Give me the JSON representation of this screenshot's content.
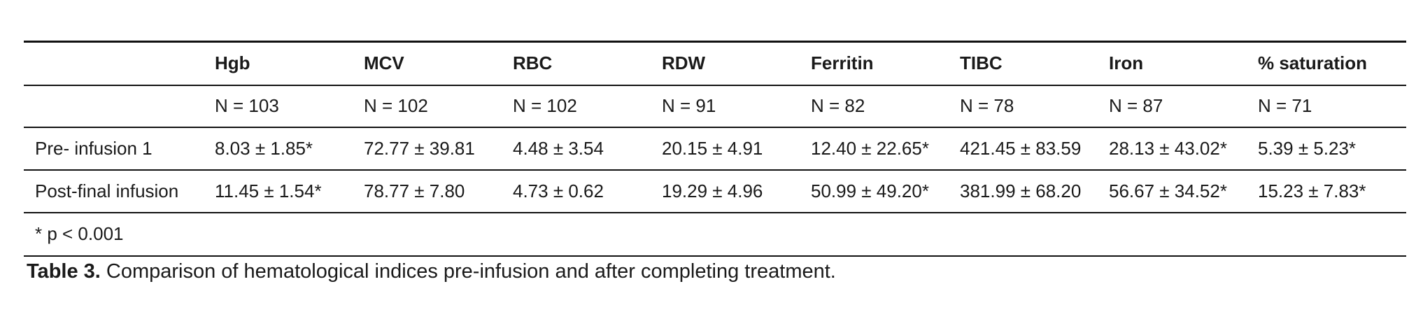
{
  "table": {
    "columns": [
      "",
      "Hgb",
      "MCV",
      "RBC",
      "RDW",
      "Ferritin",
      "TIBC",
      "Iron",
      "% saturation"
    ],
    "n_row": [
      "",
      "N = 103",
      "N = 102",
      "N = 102",
      "N = 91",
      "N = 82",
      "N = 78",
      "N = 87",
      "N = 71"
    ],
    "rows": [
      [
        "Pre- infusion 1",
        "8.03 ± 1.85*",
        "72.77 ± 39.81",
        "4.48 ± 3.54",
        "20.15 ± 4.91",
        "12.40 ± 22.65*",
        "421.45 ± 83.59",
        "28.13 ± 43.02*",
        "5.39 ± 5.23*"
      ],
      [
        "Post-final infusion",
        "11.45 ± 1.54*",
        "78.77 ± 7.80",
        "4.73 ± 0.62",
        "19.29 ± 4.96",
        "50.99 ± 49.20*",
        "381.99 ± 68.20",
        "56.67 ± 34.52*",
        "15.23 ± 7.83*"
      ]
    ],
    "footnote": "* p < 0.001"
  },
  "caption": {
    "label": "Table 3.",
    "text": "Comparison of hematological indices pre-infusion and after completing treatment."
  }
}
